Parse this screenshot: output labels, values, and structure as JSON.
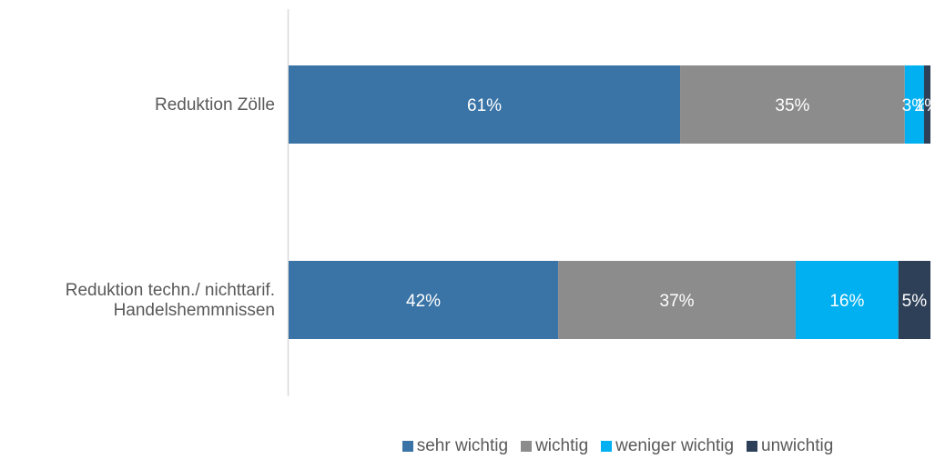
{
  "chart_data": {
    "type": "bar",
    "orientation": "horizontal",
    "stacked": "percent",
    "categories": [
      [
        "Reduktion Zölle"
      ],
      [
        "Reduktion techn./ nichttarif.",
        "Handelshemmnissen"
      ]
    ],
    "series": [
      {
        "name": "sehr wichtig",
        "color": "#3A74A6",
        "values": [
          61,
          42
        ],
        "labels": [
          "61%",
          "42%"
        ]
      },
      {
        "name": "wichtig",
        "color": "#8C8C8C",
        "values": [
          35,
          37
        ],
        "labels": [
          "35%",
          "37%"
        ]
      },
      {
        "name": "weniger wichtig",
        "color": "#00B0F0",
        "values": [
          3,
          16
        ],
        "labels": [
          "3%",
          "16%"
        ]
      },
      {
        "name": "unwichtig",
        "color": "#2E4057",
        "values": [
          1,
          5
        ],
        "labels": [
          "1%",
          "5%"
        ]
      }
    ],
    "xlim": [
      0,
      100
    ],
    "grid": false,
    "legend_position": "bottom"
  }
}
